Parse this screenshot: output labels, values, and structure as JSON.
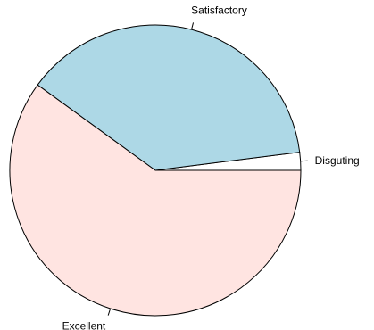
{
  "chart_data": {
    "type": "pie",
    "title": "",
    "slices": [
      {
        "label": "Disguting",
        "value": 2,
        "color": "#ffffff"
      },
      {
        "label": "Satisfactory",
        "value": 38,
        "color": "#add8e6"
      },
      {
        "label": "Excellent",
        "value": 60,
        "color": "#ffe4e1"
      }
    ],
    "start_angle_deg": 0,
    "direction": "counterclockwise"
  }
}
